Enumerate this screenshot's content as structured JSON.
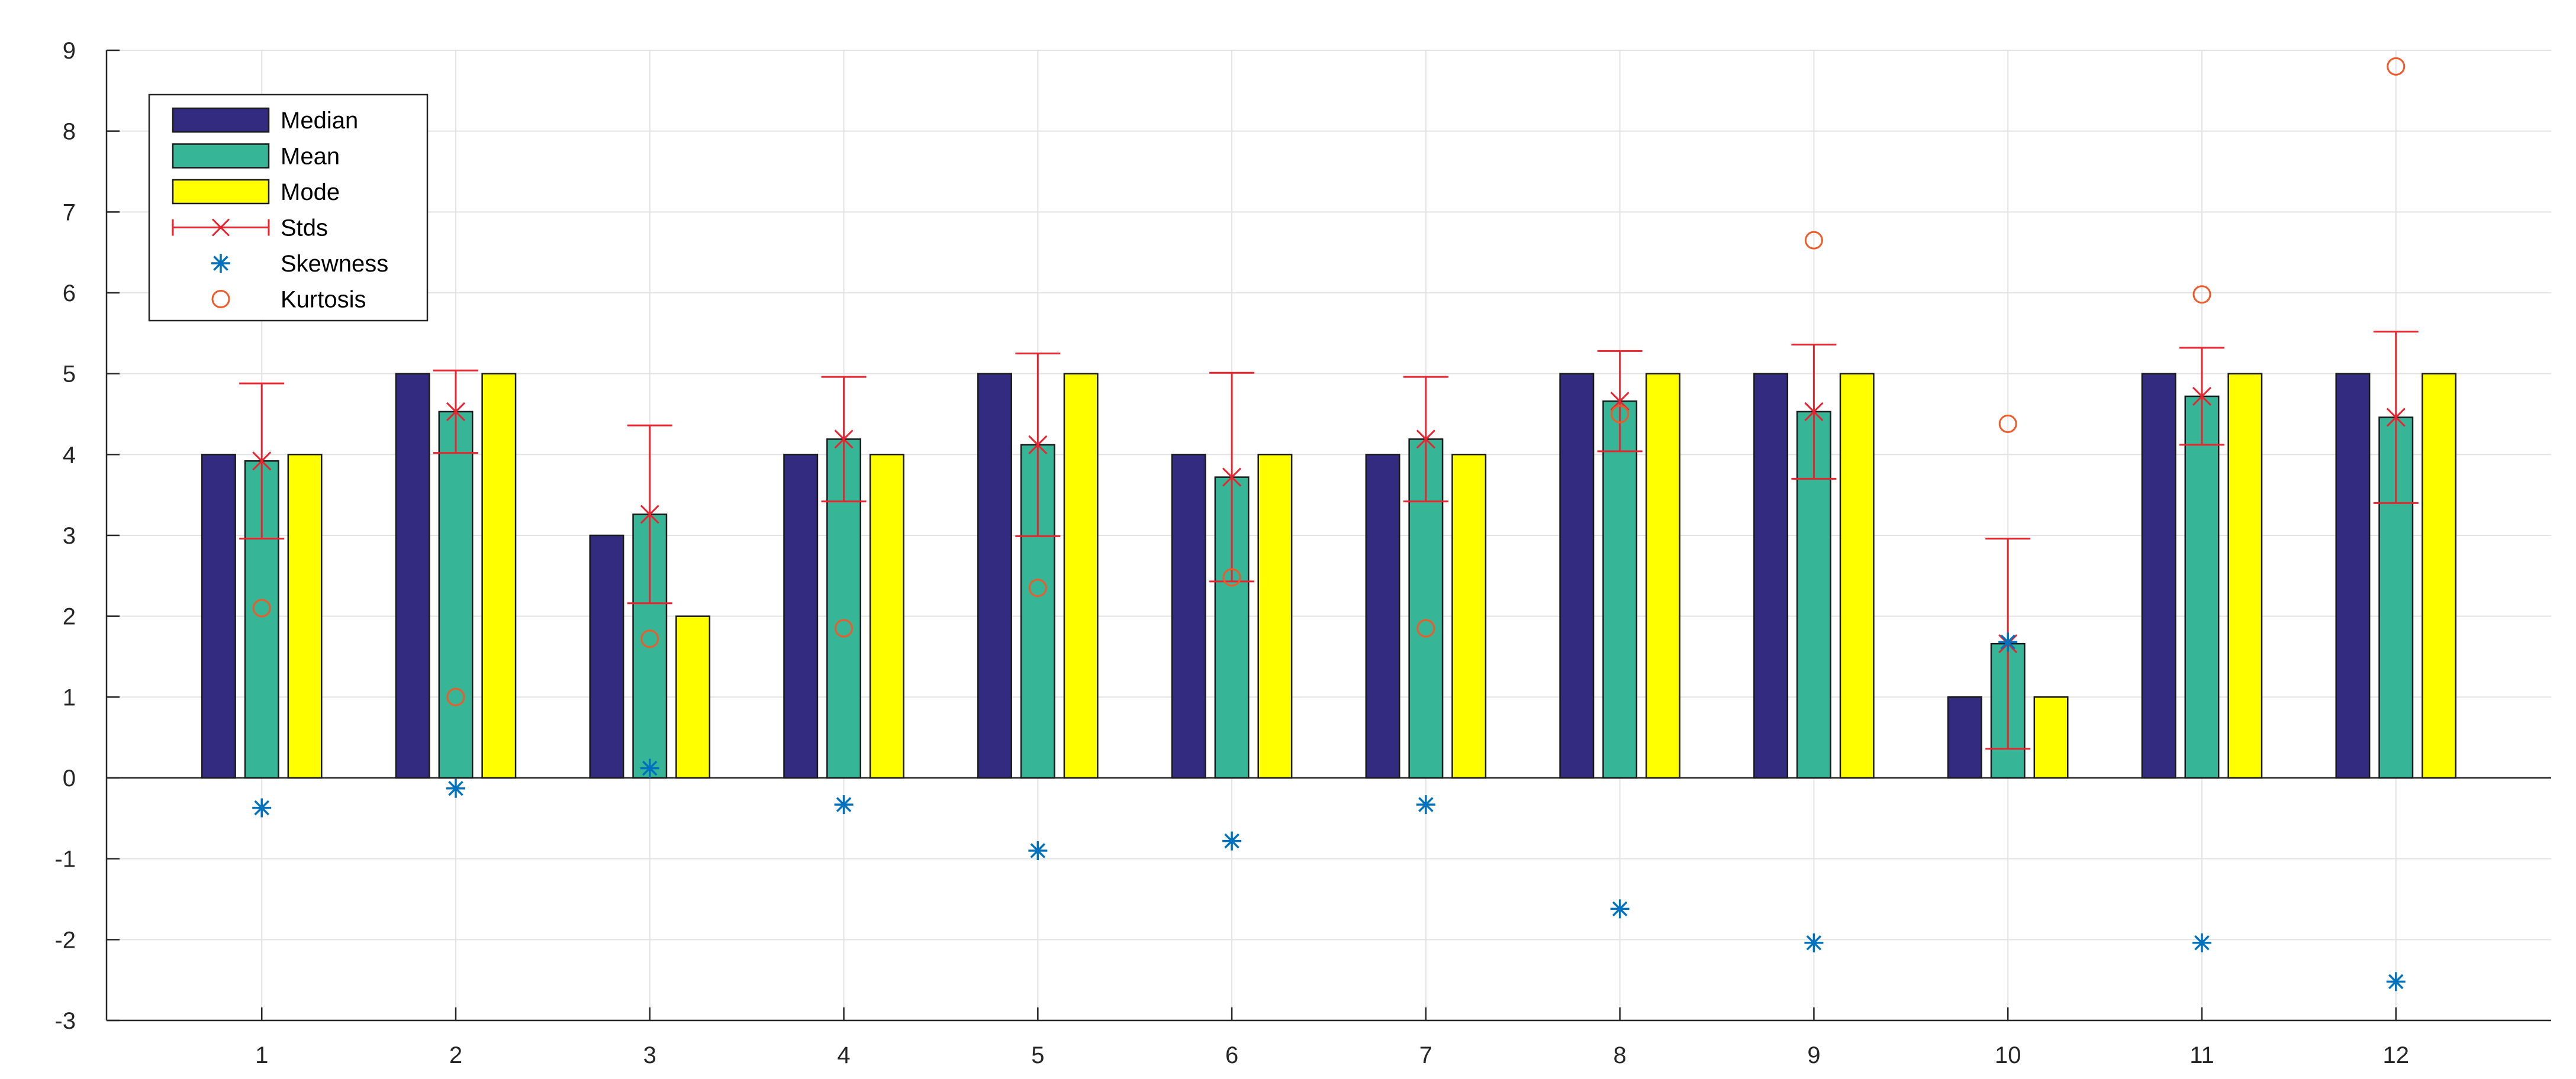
{
  "chart_data": {
    "type": "bar",
    "title": "",
    "xlabel": "",
    "ylabel": "",
    "categories": [
      "1",
      "2",
      "3",
      "4",
      "5",
      "6",
      "7",
      "8",
      "9",
      "10",
      "11",
      "12"
    ],
    "xlim": [
      0.2,
      12.8
    ],
    "ylim": [
      -3,
      9
    ],
    "yticks": [
      -3,
      -2,
      -1,
      0,
      1,
      2,
      3,
      4,
      5,
      6,
      7,
      8,
      9
    ],
    "grid": true,
    "legend_position": "top-left",
    "series": [
      {
        "name": "Median",
        "kind": "bar",
        "color": "#332B80",
        "values": [
          4,
          5,
          3,
          4,
          5,
          4,
          4,
          5,
          5,
          1,
          5,
          5
        ]
      },
      {
        "name": "Mean",
        "kind": "bar",
        "color": "#36B597",
        "values": [
          3.92,
          4.53,
          3.26,
          4.19,
          4.12,
          3.72,
          4.19,
          4.66,
          4.53,
          1.66,
          4.72,
          4.46
        ]
      },
      {
        "name": "Mode",
        "kind": "bar",
        "color": "#FFFF00",
        "values": [
          4,
          5,
          2,
          4,
          5,
          4,
          4,
          5,
          5,
          1,
          5,
          5
        ]
      },
      {
        "name": "Stds",
        "kind": "errorbar",
        "color": "#E8242F",
        "values": [
          0.96,
          0.51,
          1.1,
          0.77,
          1.13,
          1.29,
          0.77,
          0.62,
          0.83,
          1.3,
          0.6,
          1.06
        ]
      },
      {
        "name": "Skewness",
        "kind": "marker-star",
        "color": "#0072BD",
        "values": [
          -0.37,
          -0.13,
          0.12,
          -0.33,
          -0.9,
          -0.78,
          -0.33,
          -1.62,
          -2.04,
          1.68,
          -2.04,
          -2.52
        ]
      },
      {
        "name": "Kurtosis",
        "kind": "marker-circle",
        "color": "#F05A28",
        "values": [
          2.1,
          1.0,
          1.72,
          1.85,
          2.35,
          2.48,
          1.85,
          4.5,
          6.65,
          4.38,
          5.98,
          8.8
        ]
      }
    ],
    "legend_labels": [
      "Median",
      "Mean",
      "Mode",
      "Stds",
      "Skewness",
      "Kurtosis"
    ]
  }
}
